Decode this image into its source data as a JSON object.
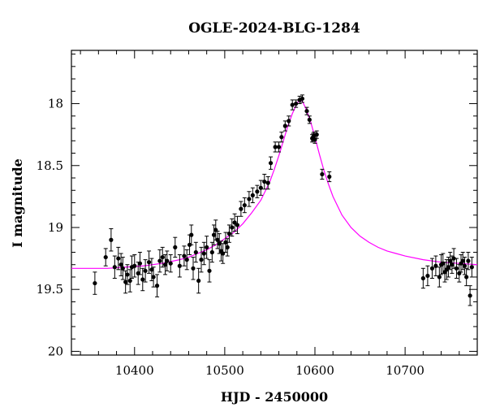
{
  "chart_data": {
    "type": "scatter",
    "title": "OGLE-2024-BLG-1284",
    "xlabel": "HJD - 2450000",
    "ylabel": "I magnitude",
    "xlim": [
      10330,
      10780
    ],
    "ylim": [
      20.03,
      17.57
    ],
    "y_inverted": true,
    "x_major_ticks": [
      10400,
      10500,
      10600,
      10700
    ],
    "x_minor_step": 20,
    "y_major_ticks": [
      18,
      18.5,
      19,
      19.5,
      20
    ],
    "y_minor_step": 0.1,
    "x_tick_labels": [
      "10400",
      "10500",
      "10600",
      "10700"
    ],
    "y_tick_labels": [
      "18",
      "18.5",
      "19",
      "19.5",
      "20"
    ],
    "grid": false,
    "series": [
      {
        "type": "errorbar",
        "color": "#000000",
        "x": [
          10356,
          10368,
          10374,
          10378,
          10382,
          10385,
          10387,
          10390,
          10392,
          10395,
          10397,
          10400,
          10404,
          10406,
          10409,
          10412,
          10416,
          10419,
          10421,
          10425,
          10428,
          10431,
          10434,
          10436,
          10440,
          10445,
          10450,
          10455,
          10458,
          10461,
          10463,
          10465,
          10468,
          10471,
          10474,
          10477,
          10480,
          10483,
          10486,
          10488,
          10490,
          10492,
          10494,
          10496,
          10498,
          10501,
          10503,
          10505,
          10508,
          10511,
          10514,
          10518,
          10522,
          10527,
          10531,
          10536,
          10540,
          10544,
          10548,
          10551,
          10556,
          10560,
          10563,
          10567,
          10571,
          10575,
          10579,
          10583,
          10586,
          10591,
          10594,
          10597,
          10598,
          10599,
          10600,
          10602,
          10608,
          10616,
          10720,
          10725,
          10730,
          10734,
          10738,
          10740,
          10742,
          10744,
          10746,
          10748,
          10750,
          10752,
          10754,
          10757,
          10760,
          10762,
          10764,
          10766,
          10768,
          10770,
          10772,
          10774
        ],
        "y": [
          19.45,
          19.24,
          19.1,
          19.32,
          19.25,
          19.3,
          19.33,
          19.44,
          19.38,
          19.43,
          19.32,
          19.31,
          19.37,
          19.29,
          19.42,
          19.35,
          19.28,
          19.34,
          19.4,
          19.47,
          19.27,
          19.24,
          19.3,
          19.27,
          19.29,
          19.16,
          19.31,
          19.23,
          19.26,
          19.14,
          19.06,
          19.33,
          19.2,
          19.43,
          19.26,
          19.21,
          19.16,
          19.35,
          19.2,
          19.06,
          19.02,
          19.1,
          19.13,
          19.19,
          19.21,
          19.12,
          19.16,
          19.05,
          19.0,
          18.96,
          18.98,
          18.85,
          18.82,
          18.77,
          18.74,
          18.71,
          18.68,
          18.63,
          18.64,
          18.48,
          18.35,
          18.35,
          18.27,
          18.18,
          18.14,
          18.01,
          18.0,
          17.97,
          17.96,
          18.06,
          18.13,
          18.28,
          18.27,
          18.26,
          18.29,
          18.25,
          18.57,
          18.59,
          19.41,
          19.39,
          19.33,
          19.31,
          19.4,
          19.3,
          19.29,
          19.36,
          19.34,
          19.32,
          19.27,
          19.3,
          19.25,
          19.33,
          19.37,
          19.29,
          19.27,
          19.31,
          19.4,
          19.27,
          19.55,
          19.32
        ],
        "err": [
          0.09,
          0.07,
          0.09,
          0.09,
          0.09,
          0.09,
          0.09,
          0.09,
          0.08,
          0.09,
          0.09,
          0.09,
          0.09,
          0.09,
          0.09,
          0.09,
          0.09,
          0.09,
          0.08,
          0.09,
          0.09,
          0.08,
          0.08,
          0.08,
          0.07,
          0.08,
          0.09,
          0.08,
          0.08,
          0.08,
          0.08,
          0.09,
          0.08,
          0.1,
          0.1,
          0.09,
          0.09,
          0.09,
          0.08,
          0.08,
          0.08,
          0.07,
          0.08,
          0.08,
          0.08,
          0.08,
          0.07,
          0.07,
          0.07,
          0.07,
          0.07,
          0.06,
          0.06,
          0.06,
          0.06,
          0.05,
          0.06,
          0.06,
          0.05,
          0.05,
          0.04,
          0.04,
          0.04,
          0.04,
          0.04,
          0.04,
          0.03,
          0.03,
          0.03,
          0.03,
          0.03,
          0.03,
          0.03,
          0.03,
          0.03,
          0.03,
          0.04,
          0.04,
          0.08,
          0.08,
          0.08,
          0.08,
          0.08,
          0.08,
          0.08,
          0.08,
          0.08,
          0.08,
          0.07,
          0.07,
          0.08,
          0.08,
          0.07,
          0.07,
          0.07,
          0.07,
          0.07,
          0.07,
          0.08,
          0.08
        ]
      },
      {
        "type": "line",
        "color": "#ff00ff",
        "x": [
          10330,
          10350,
          10370,
          10390,
          10410,
          10430,
          10450,
          10460,
          10470,
          10480,
          10490,
          10500,
          10510,
          10520,
          10530,
          10540,
          10550,
          10555,
          10560,
          10565,
          10570,
          10575,
          10580,
          10583,
          10586,
          10590,
          10595,
          10600,
          10605,
          10610,
          10615,
          10620,
          10630,
          10640,
          10650,
          10660,
          10670,
          10680,
          10690,
          10700,
          10720,
          10740,
          10760,
          10780
        ],
        "y": [
          19.33,
          19.33,
          19.33,
          19.32,
          19.31,
          19.29,
          19.26,
          19.24,
          19.21,
          19.18,
          19.14,
          19.09,
          19.04,
          18.97,
          18.88,
          18.78,
          18.63,
          18.53,
          18.42,
          18.3,
          18.18,
          18.08,
          18.0,
          17.97,
          17.98,
          18.04,
          18.14,
          18.27,
          18.41,
          18.54,
          18.65,
          18.75,
          18.9,
          19.0,
          19.07,
          19.12,
          19.16,
          19.19,
          19.21,
          19.23,
          19.26,
          19.28,
          19.29,
          19.3
        ]
      }
    ]
  }
}
